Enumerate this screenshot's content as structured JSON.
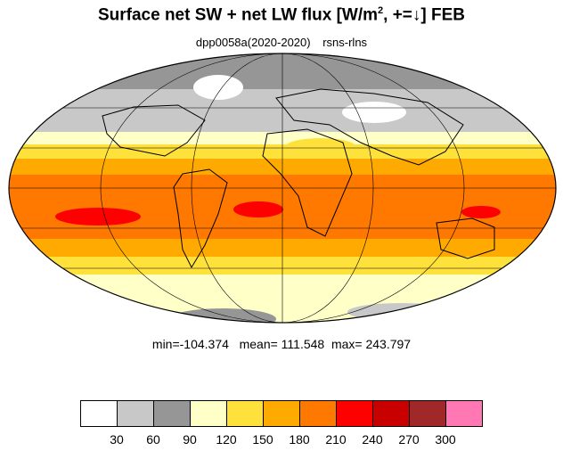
{
  "title_main": "Surface net SW + net LW flux [W/m",
  "title_sup": "2",
  "title_tail": ", +=↓]  FEB",
  "subtitle_run": "dpp0058a(2020-2020)",
  "subtitle_var": "rsns-rlns",
  "stats": "min=-104.374   mean= 111.548  max= 243.797",
  "colorbar": {
    "colors": [
      "#ffffff",
      "#c8c8c8",
      "#969696",
      "#ffffc8",
      "#ffe13c",
      "#ffaa00",
      "#ff7800",
      "#ff0000",
      "#c80000",
      "#a02828",
      "#ff78b4"
    ],
    "ticks": [
      "30",
      "60",
      "90",
      "120",
      "150",
      "180",
      "210",
      "240",
      "270",
      "300"
    ]
  },
  "colors": {
    "ocean_bands": [
      "#969696",
      "#c8c8c8",
      "#ffffc8",
      "#ffe13c",
      "#ffaa00",
      "#ff7800"
    ],
    "land_outline": "#000000"
  }
}
